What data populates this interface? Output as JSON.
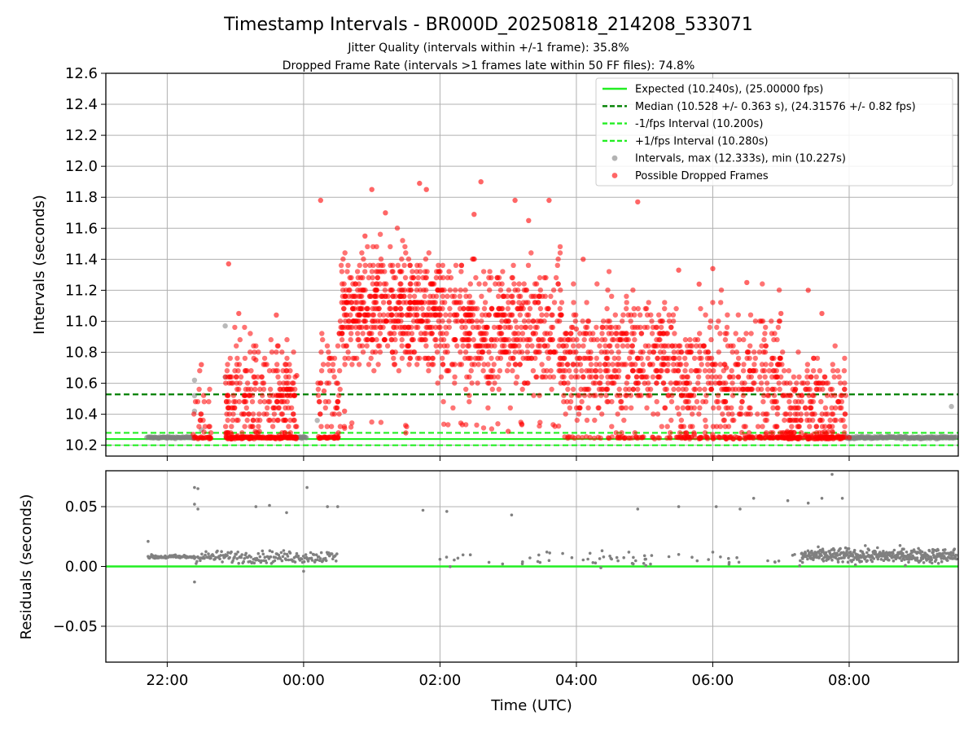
{
  "title": "Timestamp Intervals - BR000D_20250818_214208_533071",
  "subtitle_jitter": "Jitter Quality (intervals within +/-1 frame): 35.8%",
  "subtitle_dropped": "Dropped Frame Rate (intervals >1 frames late within 50 FF files): 74.8%",
  "chart_data": [
    {
      "type": "scatter",
      "panel": "intervals",
      "ylabel": "Intervals (seconds)",
      "ylim": [
        10.13,
        12.6
      ],
      "y_ticks": [
        "10.2",
        "10.4",
        "10.6",
        "10.8",
        "11.0",
        "11.2",
        "11.4",
        "11.6",
        "11.8",
        "12.0",
        "12.2",
        "12.4",
        "12.6"
      ],
      "x_range_hours": [
        21.1,
        33.6
      ],
      "grid": true,
      "legend_position": "top-right",
      "reference_lines": [
        {
          "name": "Expected (10.240s), (25.00000 fps)",
          "y": 10.24,
          "style": "solid",
          "color": "#22ee22"
        },
        {
          "name": "Median (10.528 +/- 0.363 s), (24.31576 +/- 0.82 fps)",
          "y": 10.528,
          "style": "dashed",
          "color": "#008000"
        },
        {
          "name": "-1/fps Interval (10.200s)",
          "y": 10.2,
          "style": "dashed",
          "color": "#22ee22"
        },
        {
          "name": "+1/fps Interval (10.280s)",
          "y": 10.28,
          "style": "dashed",
          "color": "#22ee22"
        }
      ],
      "series": [
        {
          "name": "Intervals, max (12.333s), min (10.227s)",
          "color": "#808080",
          "sample_points": [
            [
              21.7,
              10.25
            ],
            [
              22.0,
              10.25
            ],
            [
              22.4,
              10.62
            ],
            [
              22.4,
              10.52
            ],
            [
              22.4,
              10.42
            ],
            [
              22.5,
              10.3
            ],
            [
              22.85,
              10.97
            ],
            [
              22.85,
              10.64
            ],
            [
              23.9,
              10.25
            ],
            [
              24.2,
              10.36
            ],
            [
              33.5,
              10.45
            ],
            [
              32.0,
              10.25
            ],
            [
              33.0,
              10.25
            ]
          ]
        },
        {
          "name": "Possible Dropped Frames",
          "color": "#ff0000",
          "sample_points": [
            [
              22.5,
              10.72
            ],
            [
              22.9,
              11.37
            ],
            [
              23.05,
              11.05
            ],
            [
              23.3,
              10.75
            ],
            [
              23.6,
              11.04
            ],
            [
              23.9,
              10.65
            ],
            [
              24.25,
              11.78
            ],
            [
              24.5,
              10.6
            ],
            [
              24.9,
              11.55
            ],
            [
              25.0,
              11.85
            ],
            [
              25.2,
              11.7
            ],
            [
              25.7,
              11.89
            ],
            [
              25.8,
              11.85
            ],
            [
              26.5,
              11.69
            ],
            [
              26.6,
              11.9
            ],
            [
              27.1,
              11.78
            ],
            [
              27.3,
              11.65
            ],
            [
              27.6,
              11.78
            ],
            [
              28.1,
              11.4
            ],
            [
              28.9,
              11.77
            ],
            [
              29.5,
              11.33
            ],
            [
              29.8,
              11.24
            ],
            [
              30.0,
              11.34
            ],
            [
              30.5,
              11.25
            ],
            [
              31.0,
              11.05
            ],
            [
              31.4,
              11.2
            ],
            [
              31.6,
              11.05
            ],
            [
              22.6,
              10.25
            ],
            [
              23.5,
              10.25
            ],
            [
              24.5,
              10.25
            ],
            [
              25.5,
              10.28
            ],
            [
              27.0,
              10.29
            ],
            [
              28.2,
              10.25
            ],
            [
              29.5,
              10.25
            ],
            [
              30.5,
              10.25
            ],
            [
              31.5,
              10.25
            ],
            [
              32.0,
              10.25
            ],
            [
              24.3,
              10.55
            ],
            [
              24.6,
              10.42
            ],
            [
              25.3,
              10.8
            ],
            [
              26.0,
              11.2
            ],
            [
              27.2,
              11.1
            ],
            [
              28.0,
              10.95
            ],
            [
              29.0,
              10.6
            ],
            [
              30.2,
              10.7
            ],
            [
              31.2,
              10.55
            ]
          ]
        }
      ]
    },
    {
      "type": "scatter",
      "panel": "residuals",
      "xlabel": "Time (UTC)",
      "ylabel": "Residuals (seconds)",
      "ylim": [
        -0.08,
        0.08
      ],
      "y_ticks": [
        "−0.05",
        "0.00",
        "0.05"
      ],
      "x_ticks": [
        "22:00",
        "00:00",
        "02:00",
        "04:00",
        "06:00",
        "08:00"
      ],
      "x_tick_hours": [
        22,
        24,
        26,
        28,
        30,
        32
      ],
      "x_range_hours": [
        21.1,
        33.6
      ],
      "grid": true,
      "zero_line_color": "#22ee22",
      "series": [
        {
          "name": "",
          "color": "#808080",
          "sample_points": [
            [
              21.72,
              0.021
            ],
            [
              22.4,
              0.066
            ],
            [
              22.45,
              0.065
            ],
            [
              22.4,
              0.052
            ],
            [
              22.45,
              0.048
            ],
            [
              22.4,
              -0.013
            ],
            [
              23.3,
              0.05
            ],
            [
              23.5,
              0.051
            ],
            [
              23.75,
              0.045
            ],
            [
              24.05,
              0.066
            ],
            [
              24.0,
              -0.004
            ],
            [
              24.35,
              0.05
            ],
            [
              24.5,
              0.05
            ],
            [
              25.75,
              0.047
            ],
            [
              26.1,
              0.046
            ],
            [
              27.05,
              0.043
            ],
            [
              28.9,
              0.048
            ],
            [
              29.5,
              0.05
            ],
            [
              30.05,
              0.05
            ],
            [
              30.4,
              0.048
            ],
            [
              30.6,
              0.057
            ],
            [
              31.1,
              0.055
            ],
            [
              31.4,
              0.053
            ],
            [
              31.6,
              0.057
            ],
            [
              31.75,
              0.077
            ],
            [
              31.9,
              0.057
            ],
            [
              26.0,
              0.006
            ],
            [
              27.6,
              0.005
            ],
            [
              28.2,
              0.011
            ],
            [
              28.4,
              0.008
            ],
            [
              29.0,
              0.009
            ],
            [
              29.5,
              0.01
            ],
            [
              30.0,
              0.012
            ],
            [
              31.2,
              0.01
            ],
            [
              31.5,
              0.012
            ],
            [
              32.2,
              0.011
            ],
            [
              33.0,
              0.012
            ],
            [
              33.5,
              0.009
            ]
          ]
        }
      ]
    }
  ]
}
